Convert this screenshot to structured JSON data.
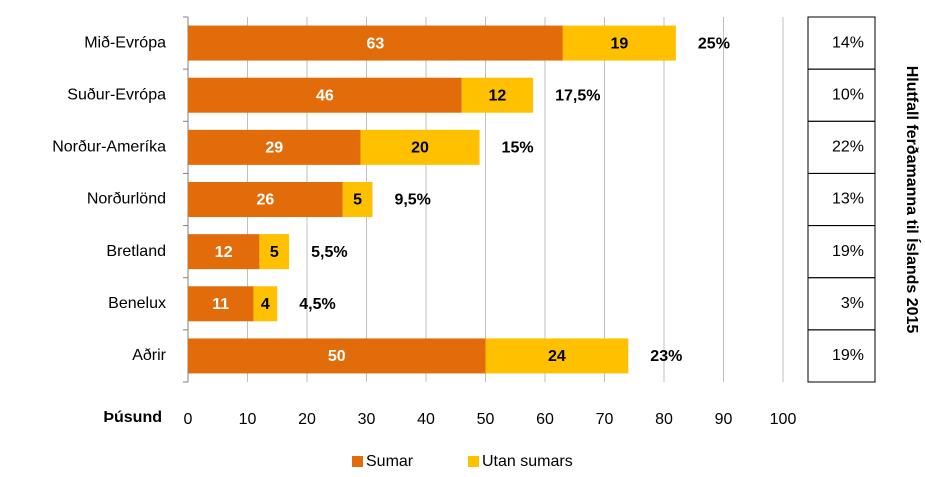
{
  "chart_data": {
    "type": "stacked-bar-horizontal",
    "categories": [
      "Mið-Evrópa",
      "Suður-Evrópa",
      "Norður-Ameríka",
      "Norðurlönd",
      "Bretland",
      "Benelux",
      "Aðrir"
    ],
    "series": [
      {
        "name": "Sumar",
        "color": "#e36c0a",
        "values": [
          63,
          46,
          29,
          26,
          12,
          11,
          50
        ]
      },
      {
        "name": "Utan sumars",
        "color": "#ffc000",
        "values": [
          19,
          12,
          20,
          5,
          5,
          4,
          24
        ]
      }
    ],
    "annotations": [
      "25%",
      "17,5%",
      "15%",
      "9,5%",
      "5,5%",
      "4,5%",
      "23%"
    ],
    "xlabel": "Þúsund",
    "xlim": [
      0,
      100
    ],
    "xticks": [
      0,
      10,
      20,
      30,
      40,
      50,
      60,
      70,
      80,
      90,
      100
    ],
    "grid": true,
    "side_table": {
      "title": "Hlutfall ferðamanna til Íslands 2015",
      "values": [
        "14%",
        "10%",
        "22%",
        "13%",
        "19%",
        "3%",
        "19%"
      ]
    }
  }
}
